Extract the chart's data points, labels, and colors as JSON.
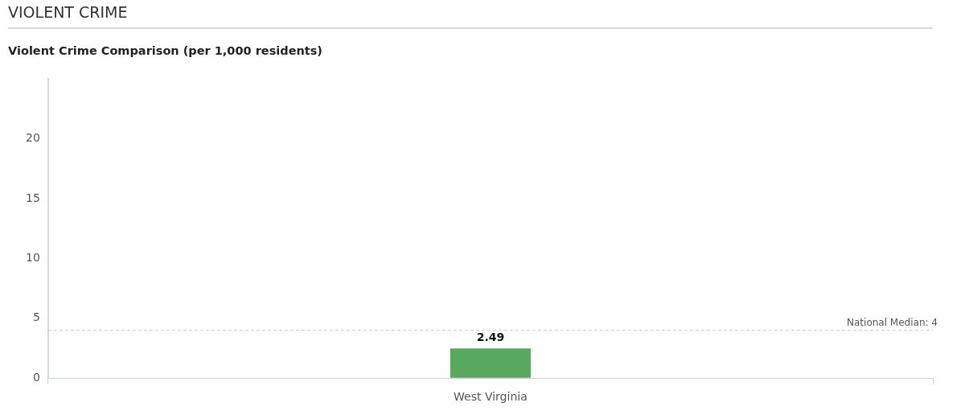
{
  "chart_data": {
    "type": "bar",
    "title": "VIOLENT CRIME",
    "subtitle": "Violent Crime Comparison (per 1,000 residents)",
    "categories": [
      "West Virginia"
    ],
    "values": [
      2.49
    ],
    "color": "#58a95d",
    "ylim": [
      0,
      25
    ],
    "yticks": [
      0,
      5,
      10,
      15,
      20
    ],
    "grid": false,
    "legend": false,
    "data_labels": true,
    "ref_lines": [
      {
        "axis": "y",
        "value": 4,
        "label": "National Median: 4",
        "color": "#c8c8c8",
        "line_style": "dashed"
      }
    ]
  }
}
